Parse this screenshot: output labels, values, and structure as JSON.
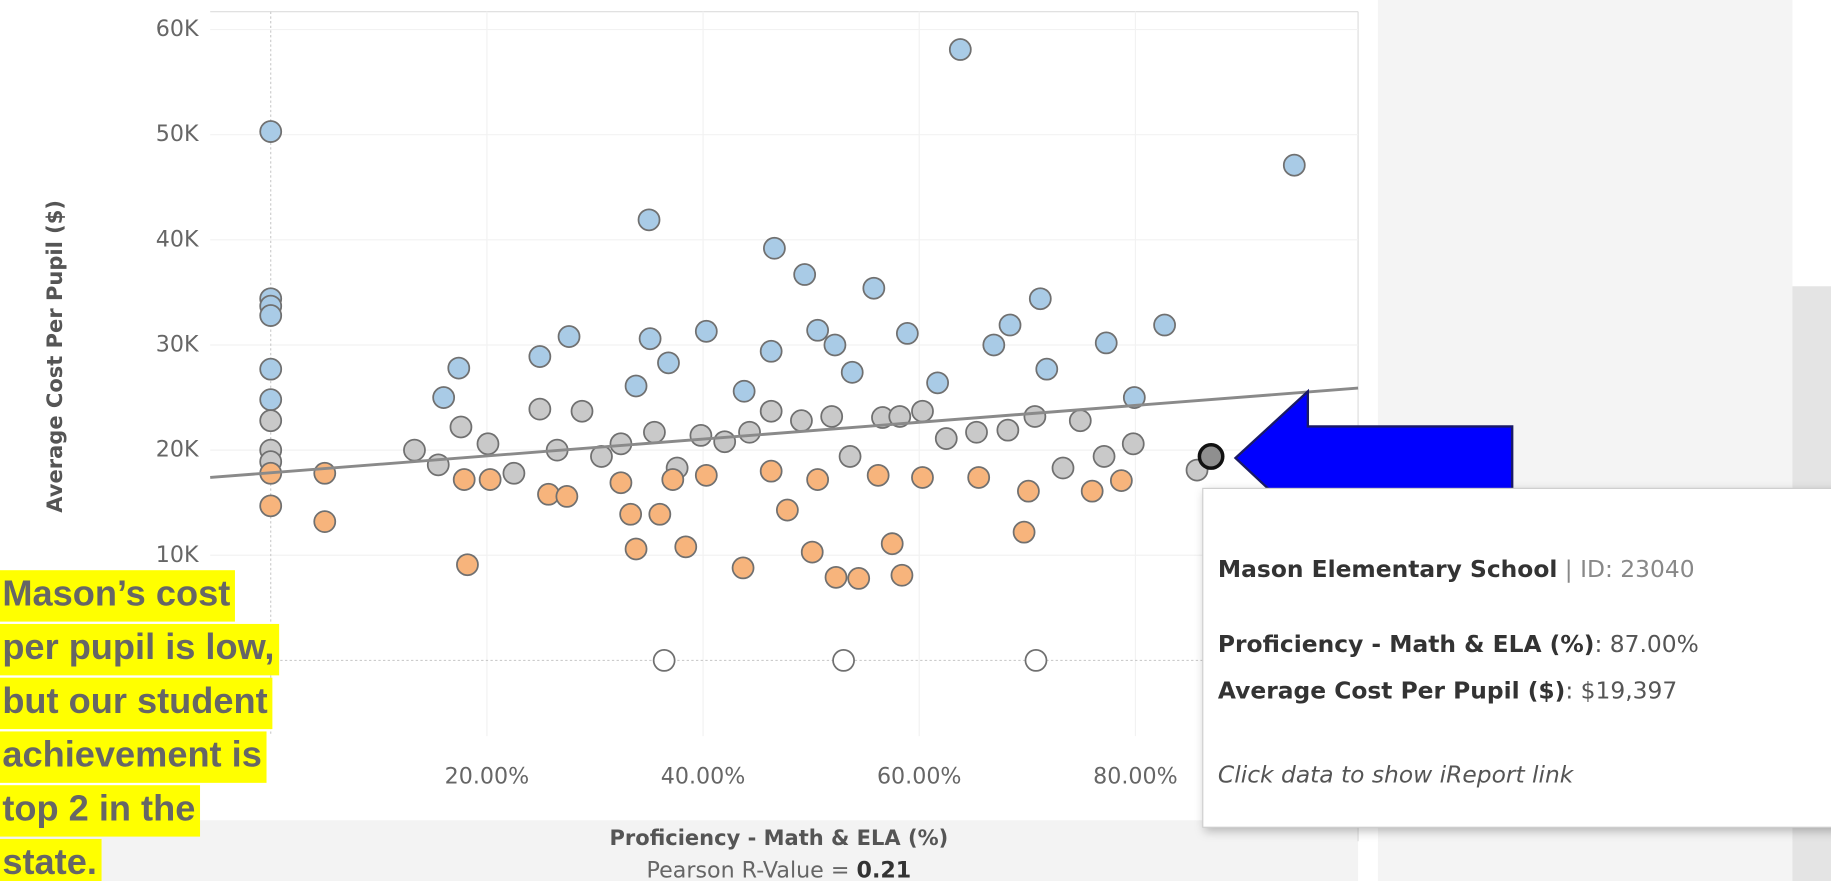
{
  "chart_data": {
    "type": "scatter",
    "x_label": "Proficiency - Math & ELA (%)",
    "y_label": "Average Cost Per Pupil ($)",
    "xlim": [
      -5.6,
      100.6
    ],
    "ylim": [
      -7200,
      61700
    ],
    "xticks": [
      {
        "value": 20,
        "label": "20.00%"
      },
      {
        "value": 40,
        "label": "40.00%"
      },
      {
        "value": 60,
        "label": "60.00%"
      },
      {
        "value": 80,
        "label": "80.00%"
      }
    ],
    "yticks": [
      {
        "value": 10000,
        "label": "10K"
      },
      {
        "value": 20000,
        "label": "20K"
      },
      {
        "value": 30000,
        "label": "30K"
      },
      {
        "value": 40000,
        "label": "40K"
      },
      {
        "value": 50000,
        "label": "50K"
      },
      {
        "value": 60000,
        "label": "60K"
      }
    ],
    "grid": true,
    "series": [
      {
        "color": "#a9cbe6",
        "x": [
          0,
          0,
          0,
          0,
          0,
          0,
          16.0,
          17.4,
          24.9,
          27.6,
          33.8,
          35.0,
          35.1,
          36.8,
          40.3,
          43.8,
          46.3,
          46.6,
          49.4,
          50.6,
          52.2,
          53.8,
          55.8,
          58.9,
          61.7,
          63.8,
          66.9,
          68.4,
          71.2,
          71.8,
          77.3,
          79.9,
          82.7,
          94.7
        ],
        "y": [
          50300,
          34400,
          33700,
          32800,
          27700,
          24800,
          25000,
          27800,
          28900,
          30800,
          26100,
          41900,
          30600,
          28300,
          31300,
          25600,
          29400,
          39200,
          36700,
          31400,
          30000,
          27400,
          35400,
          31100,
          26400,
          58100,
          30000,
          31900,
          34400,
          27700,
          30200,
          25000,
          31900,
          47100
        ]
      },
      {
        "color": "#c9c9c9",
        "x": [
          0,
          0,
          0,
          13.3,
          15.5,
          17.6,
          20.1,
          22.5,
          24.9,
          26.5,
          28.8,
          30.6,
          32.4,
          35.5,
          37.6,
          39.8,
          42.0,
          44.3,
          46.3,
          49.1,
          51.9,
          53.6,
          56.6,
          58.2,
          60.3,
          62.5,
          65.3,
          68.2,
          70.7,
          73.3,
          74.9,
          77.1,
          79.8,
          85.7
        ],
        "y": [
          20000,
          18900,
          22800,
          20000,
          18600,
          22200,
          20600,
          17800,
          23900,
          20000,
          23700,
          19400,
          20600,
          21700,
          18300,
          21400,
          20800,
          21700,
          23700,
          22800,
          23200,
          19400,
          23100,
          23200,
          23700,
          21100,
          21700,
          21900,
          23200,
          18300,
          22800,
          19400,
          20600,
          18100
        ]
      },
      {
        "color": "#f7b47c",
        "x": [
          0,
          0,
          5.0,
          5.0,
          18.2,
          17.9,
          20.3,
          25.7,
          27.4,
          32.4,
          33.3,
          33.8,
          36.0,
          37.2,
          38.4,
          40.3,
          43.7,
          46.3,
          47.8,
          50.1,
          50.6,
          52.3,
          54.4,
          56.2,
          57.5,
          58.4,
          60.3,
          65.5,
          69.7,
          70.1,
          76.0,
          78.7
        ],
        "y": [
          17800,
          14700,
          17800,
          13200,
          9100,
          17200,
          17200,
          15800,
          15600,
          16900,
          13900,
          10600,
          13900,
          17200,
          10800,
          17600,
          8800,
          18000,
          14300,
          10300,
          17200,
          7900,
          7800,
          17600,
          11100,
          8100,
          17400,
          17400,
          12200,
          16100,
          16100,
          17100
        ]
      },
      {
        "color": "#ffffff",
        "x": [
          36.4,
          53.0,
          70.8
        ],
        "y": [
          0,
          0,
          0
        ]
      }
    ],
    "highlight": {
      "x": 87,
      "y": 19397,
      "color": "#8f8f8f"
    },
    "trend_line": {
      "x": [
        -5.6,
        100.6
      ],
      "y": [
        17400,
        25900
      ],
      "color": "#8a8a8a"
    },
    "footer": {
      "text": "Pearson R-Value = ",
      "value": 0.21
    }
  },
  "annotation": {
    "lines": [
      "Mason’s cost",
      "per pupil is low,",
      "but our student",
      "achievement is",
      "top 2 in the",
      "state."
    ]
  },
  "tooltip": {
    "name": "Mason Elementary School",
    "id_text": " | ID: 23040",
    "rows": [
      {
        "label": "Proficiency - Math & ELA (%)",
        "value": ": 87.00%"
      },
      {
        "label": "Average Cost Per Pupil ($)",
        "value": ": $19,397"
      }
    ],
    "note": "Click data to show iReport link"
  }
}
